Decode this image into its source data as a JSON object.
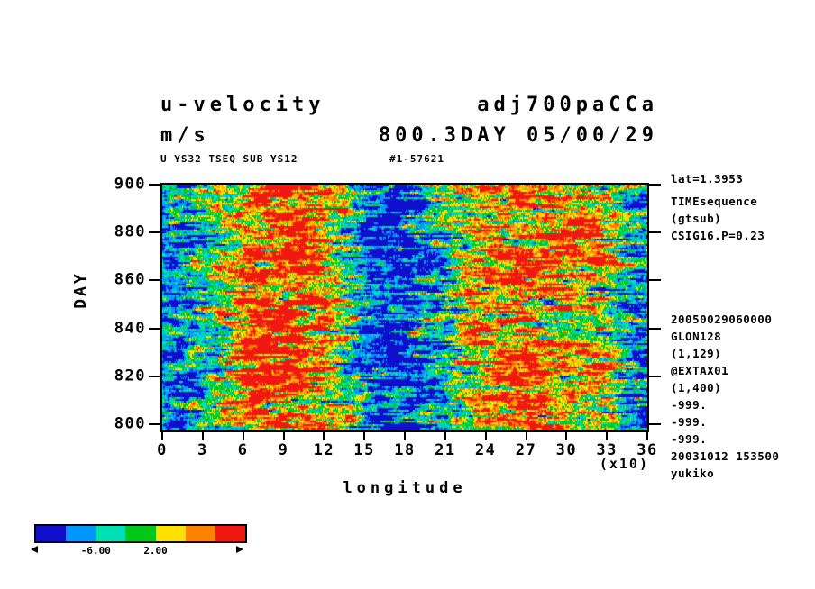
{
  "header": {
    "title_left_line1": "u-velocity",
    "title_left_line2": "m/s",
    "title_right_line1": "adj700paCCa",
    "title_right_line2": "800.3DAY 05/00/29",
    "sub_left": "U YS32 TSEQ SUB YS12",
    "sub_right": "#1-57621"
  },
  "right_annotations": {
    "lat_line": "lat=1.3953",
    "group1": [
      "TIMEsequence",
      "(gtsub)",
      "CSIG16.P=0.23"
    ],
    "group2": [
      "20050029060000",
      "GLON128",
      "(1,129)",
      "@EXTAX01",
      "(1,400)",
      "-999.",
      "-999.",
      "-999.",
      "20031012 153500",
      "yukiko"
    ]
  },
  "chart_data": {
    "type": "heatmap",
    "title": "u-velocity (m/s) adj700paCCa 800.3DAY 05/00/29",
    "xlabel": "longitude",
    "x_unit_note": "(x10)",
    "x_ticks": [
      0,
      3,
      6,
      9,
      12,
      15,
      18,
      21,
      24,
      27,
      30,
      33,
      36
    ],
    "x_range": [
      0,
      36
    ],
    "ylabel": "DAY",
    "y_ticks": [
      900,
      880,
      860,
      840,
      820,
      800
    ],
    "y_range": [
      800,
      900
    ],
    "colorbar": {
      "colors": [
        "#1010cc",
        "#0095ff",
        "#00e0b4",
        "#00c818",
        "#ffe000",
        "#ff8200",
        "#f01810"
      ],
      "levels": [
        -10,
        -6,
        -2,
        2,
        6,
        10
      ],
      "boundary_labels": [
        "-6.00",
        "2.00"
      ],
      "boundary_label_positions": [
        2,
        4
      ],
      "segments": 7
    },
    "field_model": {
      "description": "Approximate zonal structure of u-velocity read from the plot: easterlies (blue) near longitudes 0-40 and 150-220, westerlies (red) near 60-130 and 230-330, blue again near 340-360; noisy horizontal streaks over days 800-900",
      "lon_bin_deg": 10,
      "u_mean_by_bin": [
        -8,
        -8,
        -6,
        -3,
        1,
        5,
        9,
        11,
        11,
        10,
        9,
        8,
        5,
        0,
        -5,
        -9,
        -11,
        -11,
        -10,
        -8,
        -5,
        -2,
        2,
        5,
        7,
        8,
        9,
        9,
        8,
        7,
        6,
        5,
        4,
        0,
        -5,
        -9
      ],
      "noise_sigma": 7,
      "seed": 987654321
    }
  }
}
